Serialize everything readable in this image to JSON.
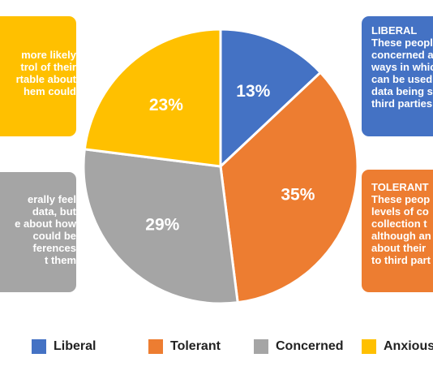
{
  "chart_data": {
    "type": "pie",
    "slices": [
      {
        "name": "Liberal",
        "value": 13,
        "label": "13%",
        "color": "#4472C4"
      },
      {
        "name": "Tolerant",
        "value": 35,
        "label": "35%",
        "color": "#ED7D31"
      },
      {
        "name": "Concerned",
        "value": 29,
        "label": "29%",
        "color": "#A5A5A5"
      },
      {
        "name": "Anxious",
        "value": 23,
        "label": "23%",
        "color": "#FFC000"
      }
    ],
    "legend_position": "bottom"
  },
  "legend": {
    "liberal": "Liberal",
    "tolerant": "Tolerant",
    "concerned": "Concerned",
    "anxious": "Anxious"
  },
  "boxes": {
    "anxious": {
      "color": "#FFC000",
      "lines": [
        "more likely",
        "trol of their",
        "rtable about",
        "hem could"
      ]
    },
    "concerned": {
      "color": "#A5A5A5",
      "lines": [
        "erally feel",
        "data, but",
        "e about how",
        "could be",
        "ferences",
        "t them"
      ]
    },
    "liberal": {
      "color": "#4472C4",
      "heading": "LIBERAL",
      "lines": [
        "These peopl",
        "concerned a",
        "ways in whic",
        "can be used",
        "data being s",
        "third parties"
      ]
    },
    "tolerant": {
      "color": "#ED7D31",
      "heading": "TOLERANT",
      "lines": [
        "These peop",
        "levels of co",
        "collection t",
        "although an",
        "about their",
        "to third part"
      ]
    }
  }
}
